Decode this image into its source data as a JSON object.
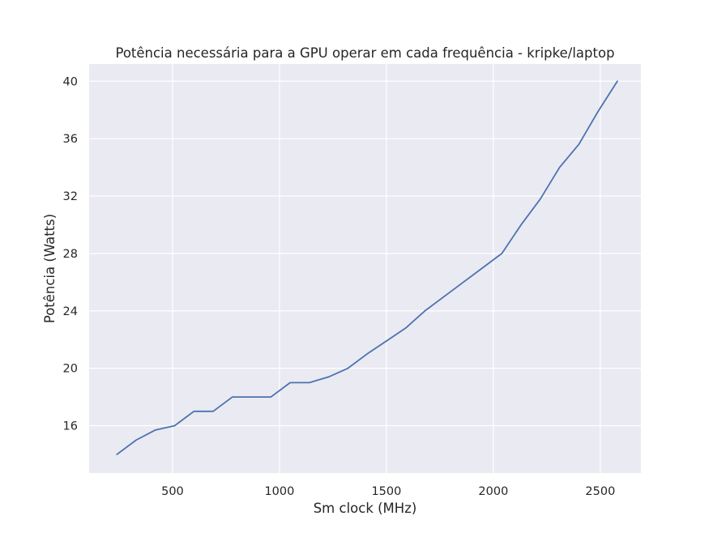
{
  "chart_data": {
    "type": "line",
    "title": "Potência necessária para a GPU operar em cada frequência - kripke/laptop",
    "xlabel": "Sm clock (MHz)",
    "ylabel": "Potência (Watts)",
    "xlim": [
      110,
      2690
    ],
    "ylim": [
      12.7,
      41.2
    ],
    "xticks": [
      500,
      1000,
      1500,
      2000,
      2500
    ],
    "xtick_labels": [
      "500",
      "1000",
      "1500",
      "2000",
      "2500"
    ],
    "yticks": [
      16,
      20,
      24,
      28,
      32,
      36,
      40
    ],
    "ytick_labels": [
      "16",
      "20",
      "24",
      "28",
      "32",
      "36",
      "40"
    ],
    "grid": true,
    "background_color": "#eaeaf2",
    "grid_color": "#ffffff",
    "line_color": "#4c72b0",
    "series": [
      {
        "x": [
          240,
          330,
          420,
          510,
          600,
          690,
          780,
          870,
          960,
          1050,
          1140,
          1230,
          1320,
          1410,
          1500,
          1590,
          1680,
          1770,
          1860,
          1950,
          2040,
          2130,
          2220,
          2310,
          2400,
          2490,
          2580
        ],
        "values": [
          14.0,
          15.0,
          15.7,
          16.0,
          17.0,
          17.0,
          18.0,
          18.0,
          18.0,
          19.0,
          19.0,
          19.4,
          20.0,
          21.0,
          21.9,
          22.8,
          24.0,
          25.0,
          26.0,
          27.0,
          28.0,
          30.0,
          31.8,
          34.0,
          35.6,
          37.9,
          40.0
        ]
      }
    ]
  }
}
